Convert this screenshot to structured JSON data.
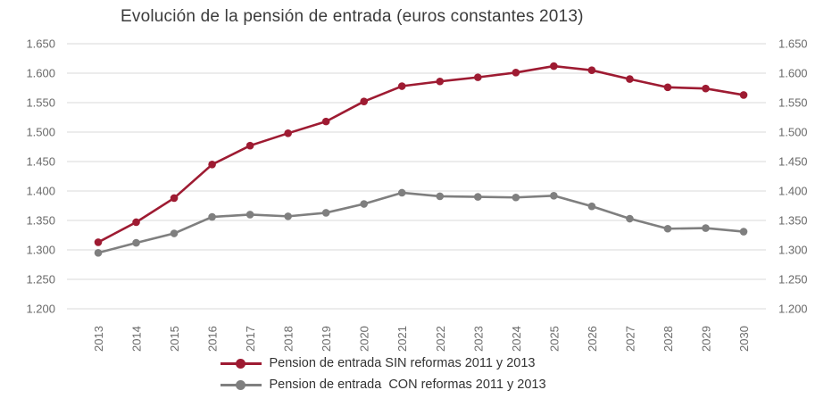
{
  "title": "Evolución de la pensión de entrada (euros constantes 2013)",
  "colors": {
    "sin_reformas": "#9E1B32",
    "con_reformas": "#7F7F7F",
    "grid": "#D9D9D9",
    "axis_text": "#6A6A6A",
    "title_text": "#3B3B3B"
  },
  "chart_data": {
    "type": "line",
    "title": "Evolución de la pensión de entrada (euros constantes 2013)",
    "xlabel": "",
    "ylabel": "",
    "grid": true,
    "legend_position": "bottom",
    "ylim": [
      1200,
      1650
    ],
    "y_ticks": [
      {
        "value": 1200,
        "label": "1.200"
      },
      {
        "value": 1250,
        "label": "1.250"
      },
      {
        "value": 1300,
        "label": "1.300"
      },
      {
        "value": 1350,
        "label": "1.350"
      },
      {
        "value": 1400,
        "label": "1.400"
      },
      {
        "value": 1450,
        "label": "1.450"
      },
      {
        "value": 1500,
        "label": "1.500"
      },
      {
        "value": 1550,
        "label": "1.550"
      },
      {
        "value": 1600,
        "label": "1.600"
      },
      {
        "value": 1650,
        "label": "1.650"
      }
    ],
    "categories": [
      "2013",
      "2014",
      "2015",
      "2016",
      "2017",
      "2018",
      "2019",
      "2020",
      "2021",
      "2022",
      "2023",
      "2024",
      "2025",
      "2026",
      "2027",
      "2028",
      "2029",
      "2030"
    ],
    "series": [
      {
        "id": "sin-reformas",
        "name": "Pension de entrada SIN reformas 2011 y 2013",
        "color": "#9E1B32",
        "values": [
          1313,
          1347,
          1388,
          1445,
          1477,
          1498,
          1518,
          1552,
          1578,
          1586,
          1593,
          1601,
          1612,
          1605,
          1590,
          1576,
          1574,
          1563
        ]
      },
      {
        "id": "con-reformas",
        "name": "Pension de entrada  CON reformas 2011 y 2013",
        "color": "#7F7F7F",
        "values": [
          1295,
          1312,
          1328,
          1356,
          1360,
          1357,
          1363,
          1378,
          1397,
          1391,
          1390,
          1389,
          1392,
          1374,
          1353,
          1336,
          1337,
          1331
        ]
      }
    ]
  },
  "legend": {
    "items": [
      {
        "label": "Pension de entrada SIN reformas 2011 y 2013",
        "color": "#9E1B32"
      },
      {
        "label": "Pension de entrada  CON reformas 2011 y 2013",
        "color": "#7F7F7F"
      }
    ]
  }
}
